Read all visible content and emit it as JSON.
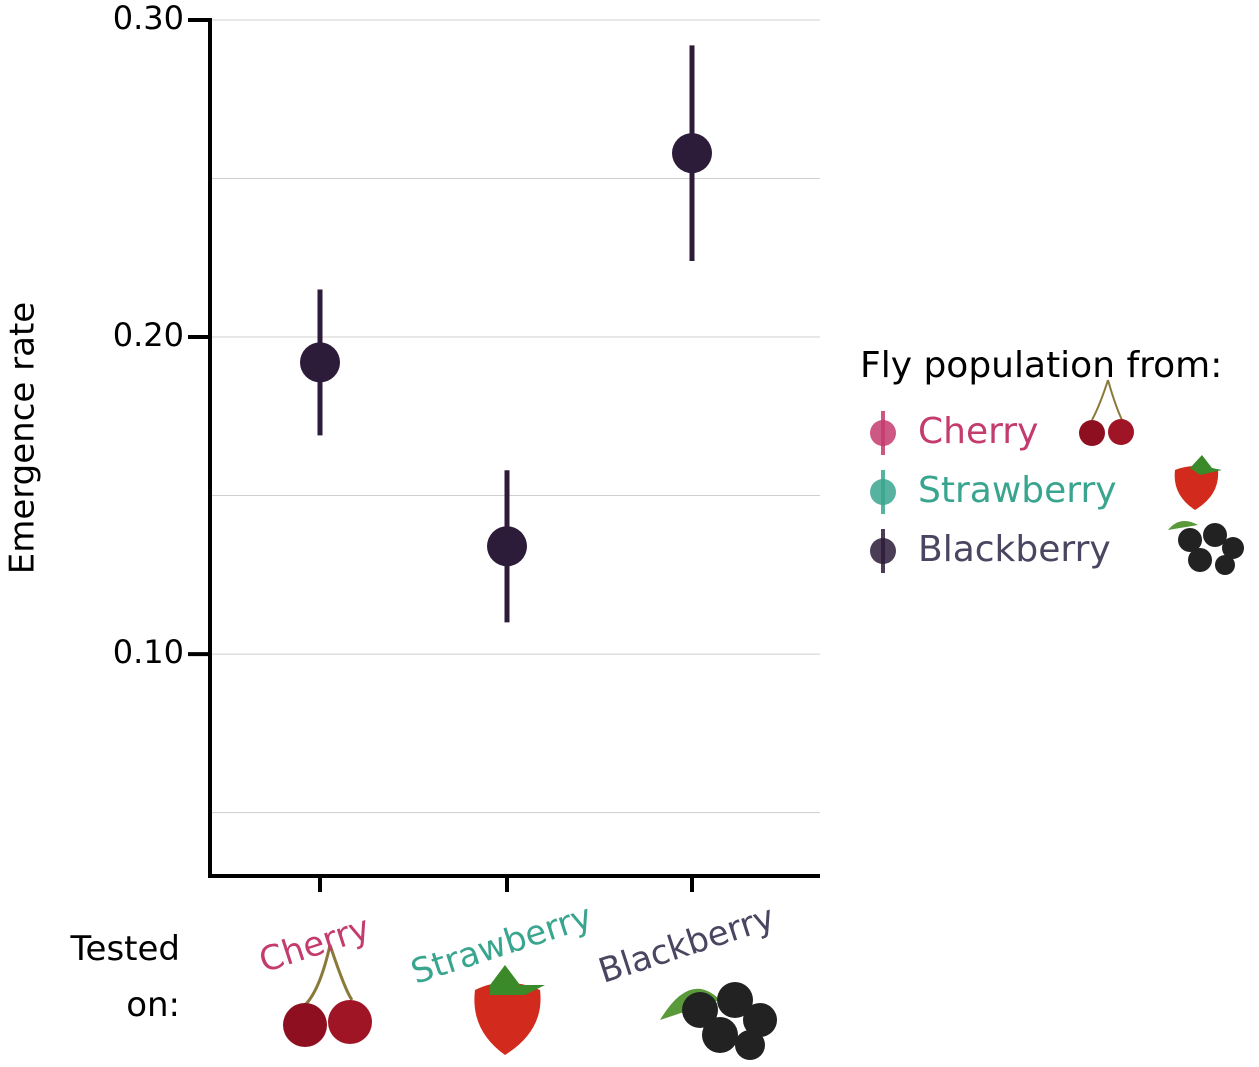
{
  "chart_data": {
    "type": "point_errorbar",
    "y_label": "Emergence rate",
    "x_annotation": "Tested on:",
    "categories": [
      "Cherry",
      "Strawberry",
      "Blackberry"
    ],
    "category_colors": [
      "#c43b6d",
      "#3aa58f",
      "#4a4560"
    ],
    "legend_title": "Fly population from:",
    "series": [
      {
        "name": "Cherry",
        "color": "#c43b6d",
        "values": [
          null,
          null,
          null
        ],
        "errors": [
          null,
          null,
          null
        ]
      },
      {
        "name": "Strawberry",
        "color": "#3aa58f",
        "values": [
          null,
          null,
          null
        ],
        "errors": [
          null,
          null,
          null
        ]
      },
      {
        "name": "Blackberry",
        "color": "#2d1b3a",
        "values": [
          0.192,
          0.134,
          0.258
        ],
        "errors": [
          0.023,
          0.024,
          0.034
        ]
      }
    ],
    "ylim": [
      0.03,
      0.3
    ],
    "yticks": [
      {
        "value": 0.1,
        "label": "0.10"
      },
      {
        "value": 0.2,
        "label": "0.20"
      },
      {
        "value": 0.3,
        "label": "0.30"
      }
    ],
    "grid_values": [
      0.05,
      0.1,
      0.15,
      0.2,
      0.25,
      0.3
    ],
    "grid": true,
    "legend": "right"
  }
}
